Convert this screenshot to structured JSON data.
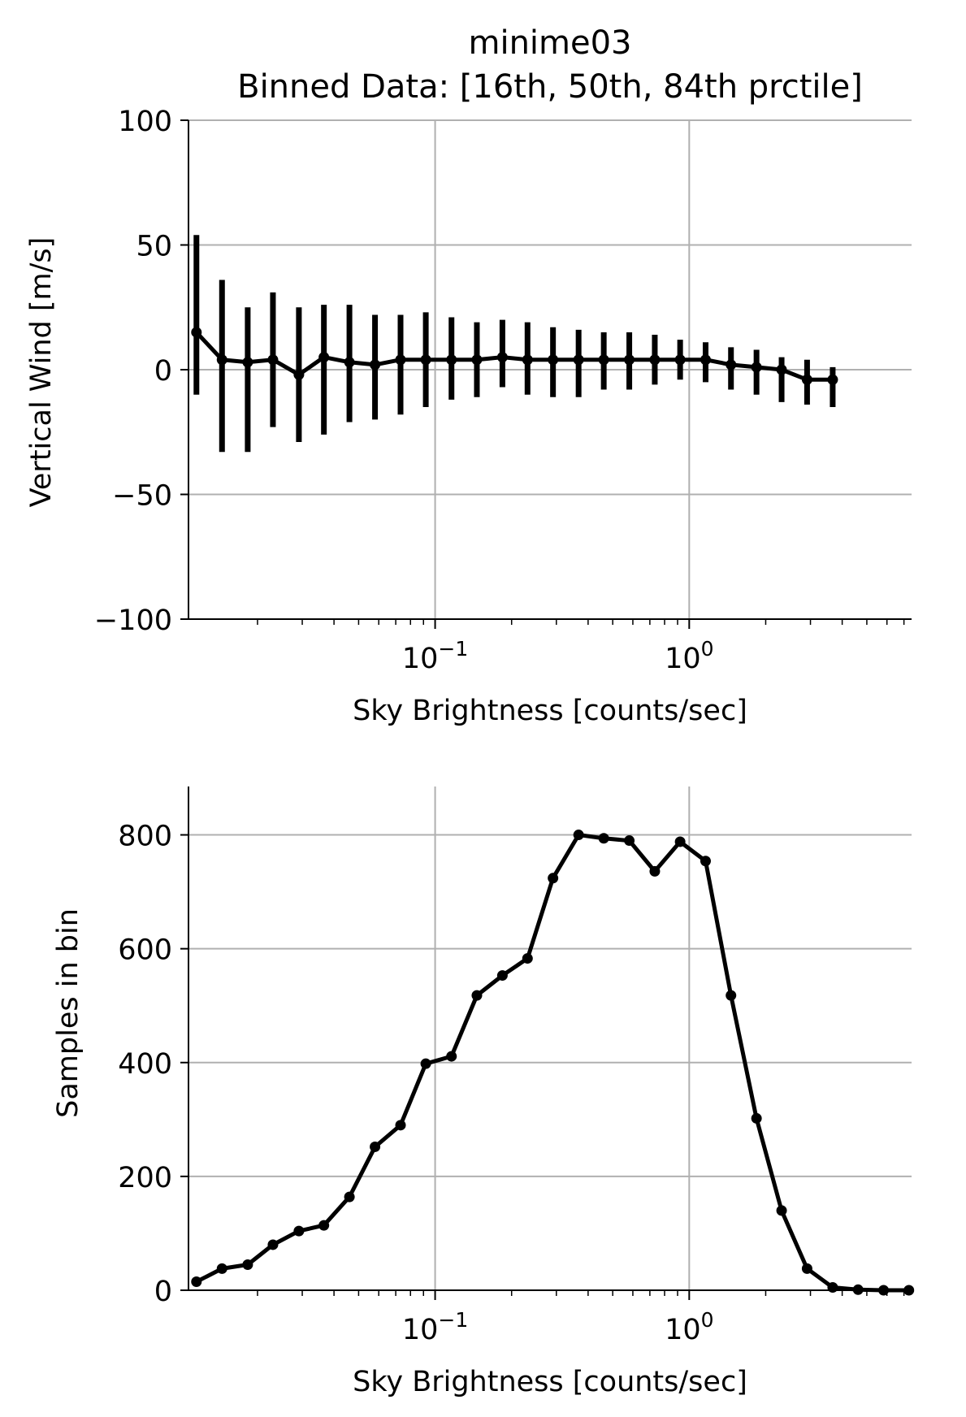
{
  "chart_data": [
    {
      "type": "line",
      "title": "minime03",
      "subtitle": "Binned Data: [16th, 50th, 84th prctile]",
      "xlabel": "Sky Brightness [counts/sec]",
      "ylabel": "Vertical Wind [m/s]",
      "x_scale": "log",
      "xlim": [
        0.0107,
        7.5
      ],
      "ylim": [
        -100,
        100
      ],
      "yticks": [
        -100,
        -50,
        0,
        50,
        100
      ],
      "ytick_labels": [
        "−100",
        "−50",
        "0",
        "50",
        "100"
      ],
      "xticks": [
        {
          "value": 0.1,
          "base": "10",
          "exp": "−1"
        },
        {
          "value": 1,
          "base": "10",
          "exp": "0"
        }
      ],
      "grid": true,
      "x": [
        0.0115,
        0.0145,
        0.0183,
        0.023,
        0.0291,
        0.0365,
        0.046,
        0.058,
        0.0731,
        0.0919,
        0.116,
        0.146,
        0.184,
        0.231,
        0.291,
        0.367,
        0.461,
        0.581,
        0.732,
        0.921,
        1.16,
        1.46,
        1.84,
        2.31,
        2.91,
        3.67
      ],
      "median": [
        15,
        4,
        3,
        4,
        -2,
        5,
        3,
        2,
        4,
        4,
        4,
        4,
        5,
        4,
        4,
        4,
        4,
        4,
        4,
        4,
        4,
        2,
        1,
        0,
        -4,
        -4
      ],
      "p16": [
        -10,
        -33,
        -33,
        -23,
        -29,
        -26,
        -21,
        -20,
        -18,
        -15,
        -12,
        -11,
        -7,
        -10,
        -11,
        -11,
        -8,
        -8,
        -6,
        -4,
        -5,
        -8,
        -10,
        -13,
        -14,
        -15
      ],
      "p84": [
        54,
        36,
        25,
        31,
        25,
        26,
        26,
        22,
        22,
        23,
        21,
        19,
        20,
        19,
        17,
        16,
        15,
        15,
        14,
        12,
        11,
        9,
        8,
        5,
        4,
        1
      ]
    },
    {
      "type": "line",
      "xlabel": "Sky Brightness [counts/sec]",
      "ylabel": "Samples in bin",
      "x_scale": "log",
      "xlim": [
        0.0107,
        7.5
      ],
      "ylim": [
        0,
        885
      ],
      "yticks": [
        0,
        200,
        400,
        600,
        800
      ],
      "ytick_labels": [
        "0",
        "200",
        "400",
        "600",
        "800"
      ],
      "xticks": [
        {
          "value": 0.1,
          "base": "10",
          "exp": "−1"
        },
        {
          "value": 1,
          "base": "10",
          "exp": "0"
        }
      ],
      "grid": true,
      "x": [
        0.0115,
        0.0145,
        0.0183,
        0.023,
        0.0291,
        0.0365,
        0.046,
        0.058,
        0.0731,
        0.0919,
        0.116,
        0.146,
        0.184,
        0.231,
        0.291,
        0.367,
        0.461,
        0.581,
        0.732,
        0.921,
        1.16,
        1.46,
        1.84,
        2.31,
        2.91,
        3.67,
        4.62,
        5.82,
        7.32
      ],
      "values": [
        15,
        38,
        45,
        80,
        104,
        114,
        164,
        252,
        290,
        398,
        411,
        518,
        553,
        583,
        724,
        800,
        794,
        790,
        736,
        788,
        754,
        518,
        302,
        140,
        38,
        5,
        1,
        0,
        0
      ]
    }
  ]
}
